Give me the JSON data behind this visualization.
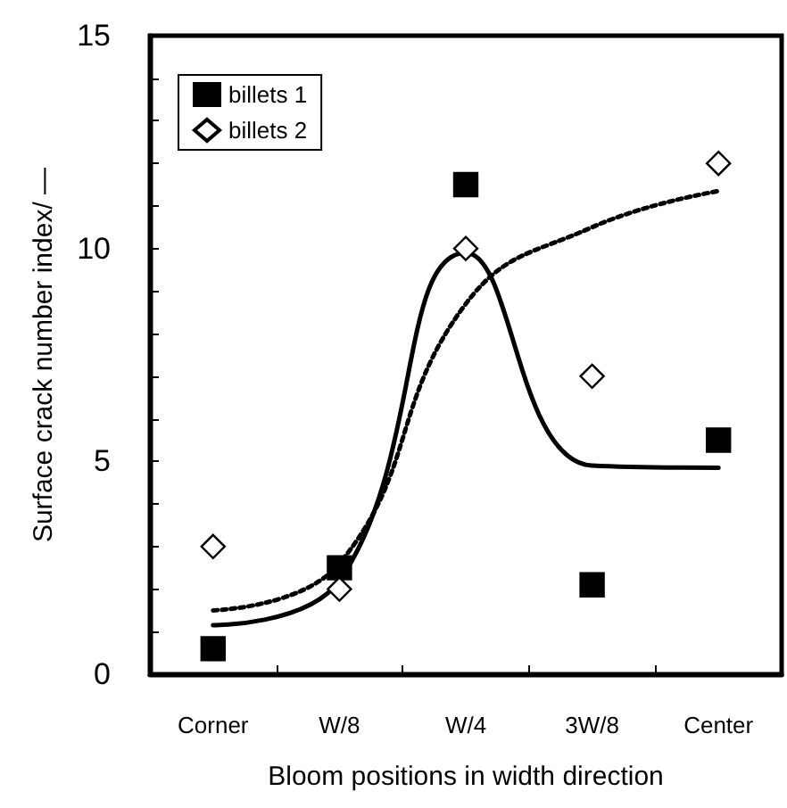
{
  "chart_data": {
    "type": "scatter",
    "xlabel": "Bloom positions in width direction",
    "ylabel": "Surface crack number index/ —",
    "categories": [
      "Corner",
      "W/8",
      "W/4",
      "3W/8",
      "Center"
    ],
    "ylim": [
      0,
      15
    ],
    "yticks": [
      0,
      {
        "value": 1,
        "label": null
      },
      {
        "value": 2,
        "label": null
      },
      {
        "value": 3,
        "label": null
      },
      {
        "value": 4,
        "label": null
      },
      5,
      {
        "value": 6,
        "label": null
      },
      {
        "value": 7,
        "label": null
      },
      {
        "value": 8,
        "label": null
      },
      {
        "value": 9,
        "label": null
      },
      10,
      {
        "value": 11,
        "label": null
      },
      {
        "value": 12,
        "label": null
      },
      {
        "value": 13,
        "label": null
      },
      {
        "value": 14,
        "label": null
      },
      15
    ],
    "grid": false,
    "legend": "top left",
    "series": [
      {
        "name": "billets 1",
        "marker": "square",
        "color": "#000000",
        "values": [
          0.6,
          2.5,
          11.5,
          2.1,
          5.5
        ]
      },
      {
        "name": "billets 2",
        "marker": "diamond",
        "color": "#000000",
        "values": [
          3.0,
          2.0,
          10.0,
          7.0,
          12.0
        ]
      },
      {
        "type": "line",
        "line_style": "solid",
        "color": "#000000",
        "values": [
          1.15,
          2.2,
          9.9,
          4.9,
          4.85
        ]
      },
      {
        "type": "line",
        "line_style": "dotted",
        "color": "#000000",
        "values": [
          1.5,
          2.6,
          8.7,
          10.5,
          11.35
        ]
      }
    ]
  }
}
